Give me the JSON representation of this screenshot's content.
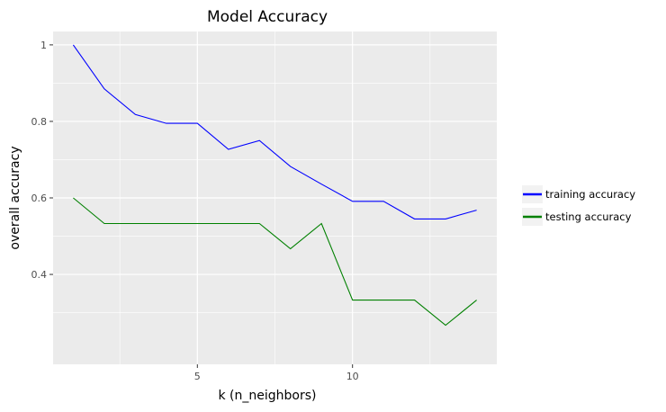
{
  "chart_data": {
    "type": "line",
    "title": "Model Accuracy",
    "xlabel": "k (n_neighbors)",
    "ylabel": "overall accuracy",
    "xlim": [
      0.35,
      14.65
    ],
    "ylim": [
      0.165,
      1.035
    ],
    "x_ticks": [
      5,
      10
    ],
    "x_tick_labels": [
      "5",
      "10"
    ],
    "x_minor_ticks": [
      2.5,
      7.5,
      12.5
    ],
    "y_ticks": [
      0.4,
      0.6,
      0.8,
      1.0
    ],
    "y_tick_labels": [
      "0.4",
      "0.6",
      "0.8",
      "1"
    ],
    "y_minor_ticks": [
      0.3,
      0.5,
      0.7,
      0.9
    ],
    "grid": true,
    "legend_position": "right",
    "x": [
      1,
      2,
      3,
      4,
      5,
      6,
      7,
      8,
      9,
      10,
      11,
      12,
      13,
      14
    ],
    "series": [
      {
        "name": "training accuracy",
        "color": "#0000ff",
        "values": [
          1.0,
          0.885,
          0.818,
          0.795,
          0.795,
          0.727,
          0.75,
          0.682,
          0.636,
          0.591,
          0.591,
          0.545,
          0.545,
          0.568
        ]
      },
      {
        "name": "testing accuracy",
        "color": "#008000",
        "values": [
          0.6,
          0.533,
          0.533,
          0.533,
          0.533,
          0.533,
          0.533,
          0.467,
          0.533,
          0.333,
          0.333,
          0.333,
          0.267,
          0.333
        ]
      }
    ],
    "panel_background": "#ebebeb",
    "grid_color": "#ffffff"
  }
}
